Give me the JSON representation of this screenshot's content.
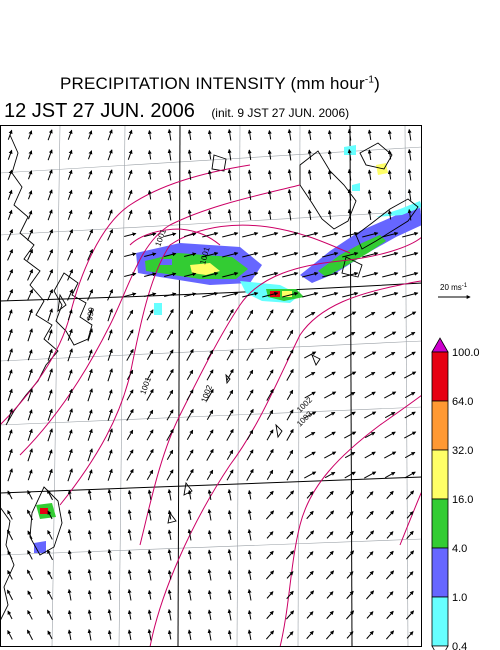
{
  "title": {
    "main": "PRECIPITATION INTENSITY (mm hour",
    "sup": "-1",
    "close": ")"
  },
  "subtitle": {
    "main": "12 JST 27 JUN. 2006",
    "init": "(init. 9 JST 27 JUN. 2006)"
  },
  "reference_vector": {
    "label_main": "20 ms",
    "label_sup": "-1"
  },
  "legend": {
    "labels": [
      "100.0",
      "64.0",
      "32.0",
      "16.0",
      "4.0",
      "1.0",
      "0.4"
    ],
    "colors": [
      "#e60012",
      "#ff9933",
      "#ffff66",
      "#33cc33",
      "#6666ff",
      "#66ffff"
    ],
    "over_color": "#cc00cc",
    "under_color": "#ffffff"
  },
  "isobar_labels": [
    "1001",
    "1001",
    "1001",
    "1002",
    "1002",
    "1003",
    "999"
  ],
  "colors": {
    "isobar": "#cc0066",
    "coast": "#000000",
    "grid": "#9aa0a6",
    "frame": "#000000"
  }
}
